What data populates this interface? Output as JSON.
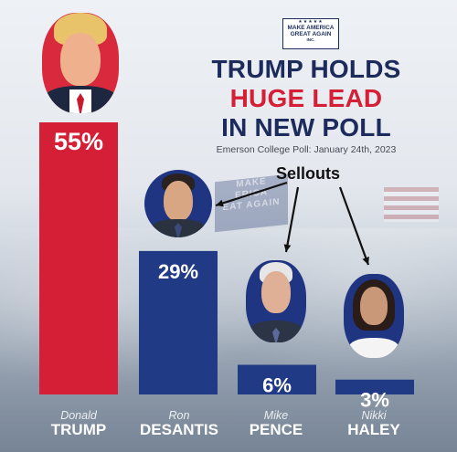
{
  "badge": {
    "stars": "★★★★★",
    "line1": "MAKE AMERICA",
    "line2": "GREAT AGAIN",
    "line3": "INC."
  },
  "title": {
    "line1": "TRUMP HOLDS",
    "line2": "HUGE LEAD",
    "line3": "IN NEW POLL"
  },
  "subtitle": "Emerson College Poll: January 24th, 2023",
  "annotation": "Sellouts",
  "background_banner": [
    "MAKE",
    "ERICA",
    "EAT AGAIN"
  ],
  "colors": {
    "red": "#d51f36",
    "navy": "#1c2b5c",
    "bar_navy": "#213a85"
  },
  "chart_data": {
    "type": "bar",
    "categories": [
      "Donald TRUMP",
      "Ron DESANTIS",
      "Mike PENCE",
      "Nikki HALEY"
    ],
    "first_names": [
      "Donald",
      "Ron",
      "Mike",
      "Nikki"
    ],
    "last_names": [
      "TRUMP",
      "DESANTIS",
      "PENCE",
      "HALEY"
    ],
    "values": [
      55,
      29,
      6,
      3
    ],
    "value_labels": [
      "55%",
      "29%",
      "6%",
      "3%"
    ],
    "bar_colors": [
      "#d51f36",
      "#213a85",
      "#213a85",
      "#213a85"
    ],
    "title": "TRUMP HOLDS HUGE LEAD IN NEW POLL",
    "ylim": [
      0,
      55
    ],
    "grid": false,
    "legend": "none"
  }
}
